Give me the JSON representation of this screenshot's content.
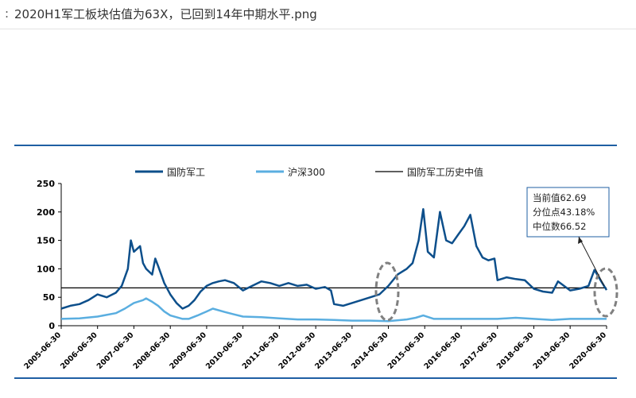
{
  "window": {
    "title_prefix": ":",
    "file_name": "2020H1军工板块估值为63X，已回到14年中期水平.png"
  },
  "annotation": {
    "lines": [
      "当前值62.69",
      "分位点43.18%",
      "中位数66.52"
    ]
  },
  "colors": {
    "defense": "#0d4f8b",
    "csi300": "#5aaee0",
    "median": "#000000",
    "rule": "#1f5fa3",
    "ellipse": "#808080"
  },
  "chart_data": {
    "type": "line",
    "title": "",
    "xlabel": "",
    "ylabel": "",
    "ylim": [
      0,
      250
    ],
    "yticks": [
      0,
      50,
      100,
      150,
      200,
      250
    ],
    "xlim": [
      "2005-06-30",
      "2020-06-30"
    ],
    "xticks": [
      "2005-06-30",
      "2006-06-30",
      "2007-06-30",
      "2008-06-30",
      "2009-06-30",
      "2010-06-30",
      "2011-06-30",
      "2012-06-30",
      "2013-06-30",
      "2014-06-30",
      "2015-06-30",
      "2016-06-30",
      "2017-06-30",
      "2018-06-30",
      "2019-06-30",
      "2020-06-30"
    ],
    "legend_position": "top",
    "grid": false,
    "series": [
      {
        "name": "国防军工",
        "points": [
          [
            "2005-06-30",
            30
          ],
          [
            "2005-09-30",
            35
          ],
          [
            "2005-12-31",
            38
          ],
          [
            "2006-03-31",
            45
          ],
          [
            "2006-06-30",
            55
          ],
          [
            "2006-09-30",
            50
          ],
          [
            "2006-12-31",
            58
          ],
          [
            "2007-02-28",
            70
          ],
          [
            "2007-04-30",
            100
          ],
          [
            "2007-05-31",
            150
          ],
          [
            "2007-06-30",
            130
          ],
          [
            "2007-08-31",
            140
          ],
          [
            "2007-09-30",
            110
          ],
          [
            "2007-10-31",
            100
          ],
          [
            "2007-12-31",
            90
          ],
          [
            "2008-01-31",
            118
          ],
          [
            "2008-02-29",
            105
          ],
          [
            "2008-04-30",
            75
          ],
          [
            "2008-06-30",
            55
          ],
          [
            "2008-08-31",
            40
          ],
          [
            "2008-10-31",
            30
          ],
          [
            "2008-12-31",
            35
          ],
          [
            "2009-02-28",
            45
          ],
          [
            "2009-04-30",
            60
          ],
          [
            "2009-06-30",
            70
          ],
          [
            "2009-08-31",
            75
          ],
          [
            "2009-10-31",
            78
          ],
          [
            "2009-12-31",
            80
          ],
          [
            "2010-03-31",
            75
          ],
          [
            "2010-06-30",
            62
          ],
          [
            "2010-09-30",
            70
          ],
          [
            "2010-12-31",
            78
          ],
          [
            "2011-03-31",
            75
          ],
          [
            "2011-06-30",
            70
          ],
          [
            "2011-09-30",
            75
          ],
          [
            "2011-12-31",
            70
          ],
          [
            "2012-03-31",
            72
          ],
          [
            "2012-06-30",
            65
          ],
          [
            "2012-09-30",
            68
          ],
          [
            "2012-11-30",
            62
          ],
          [
            "2012-12-31",
            38
          ],
          [
            "2013-03-31",
            35
          ],
          [
            "2013-06-30",
            40
          ],
          [
            "2013-09-30",
            45
          ],
          [
            "2013-12-31",
            50
          ],
          [
            "2014-03-31",
            55
          ],
          [
            "2014-06-30",
            70
          ],
          [
            "2014-09-30",
            90
          ],
          [
            "2014-12-31",
            100
          ],
          [
            "2015-02-28",
            110
          ],
          [
            "2015-04-30",
            150
          ],
          [
            "2015-06-15",
            205
          ],
          [
            "2015-07-31",
            130
          ],
          [
            "2015-09-30",
            120
          ],
          [
            "2015-11-30",
            200
          ],
          [
            "2016-01-31",
            150
          ],
          [
            "2016-03-31",
            145
          ],
          [
            "2016-05-31",
            160
          ],
          [
            "2016-07-31",
            175
          ],
          [
            "2016-09-30",
            195
          ],
          [
            "2016-11-30",
            140
          ],
          [
            "2017-01-31",
            120
          ],
          [
            "2017-03-31",
            115
          ],
          [
            "2017-05-31",
            118
          ],
          [
            "2017-06-30",
            80
          ],
          [
            "2017-09-30",
            85
          ],
          [
            "2017-12-31",
            82
          ],
          [
            "2018-03-31",
            80
          ],
          [
            "2018-06-30",
            65
          ],
          [
            "2018-09-30",
            60
          ],
          [
            "2018-12-31",
            58
          ],
          [
            "2019-02-28",
            78
          ],
          [
            "2019-04-30",
            70
          ],
          [
            "2019-06-30",
            62
          ],
          [
            "2019-09-30",
            65
          ],
          [
            "2019-12-31",
            70
          ],
          [
            "2020-02-29",
            98
          ],
          [
            "2020-04-30",
            80
          ],
          [
            "2020-06-30",
            62.69
          ]
        ]
      },
      {
        "name": "沪深300",
        "points": [
          [
            "2005-06-30",
            12
          ],
          [
            "2005-12-31",
            13
          ],
          [
            "2006-06-30",
            16
          ],
          [
            "2006-12-31",
            22
          ],
          [
            "2007-03-31",
            30
          ],
          [
            "2007-06-30",
            40
          ],
          [
            "2007-09-30",
            45
          ],
          [
            "2007-10-31",
            48
          ],
          [
            "2007-12-31",
            42
          ],
          [
            "2008-02-29",
            35
          ],
          [
            "2008-04-30",
            25
          ],
          [
            "2008-06-30",
            18
          ],
          [
            "2008-10-31",
            12
          ],
          [
            "2008-12-31",
            12
          ],
          [
            "2009-03-31",
            18
          ],
          [
            "2009-06-30",
            25
          ],
          [
            "2009-08-31",
            30
          ],
          [
            "2009-12-31",
            24
          ],
          [
            "2010-03-31",
            20
          ],
          [
            "2010-06-30",
            16
          ],
          [
            "2010-12-31",
            15
          ],
          [
            "2011-06-30",
            13
          ],
          [
            "2011-12-31",
            11
          ],
          [
            "2012-06-30",
            11
          ],
          [
            "2012-12-31",
            10
          ],
          [
            "2013-06-30",
            9
          ],
          [
            "2013-12-31",
            9
          ],
          [
            "2014-06-30",
            8
          ],
          [
            "2014-12-31",
            11
          ],
          [
            "2015-03-31",
            14
          ],
          [
            "2015-06-15",
            18
          ],
          [
            "2015-09-30",
            12
          ],
          [
            "2016-06-30",
            12
          ],
          [
            "2016-12-31",
            12
          ],
          [
            "2017-06-30",
            12
          ],
          [
            "2017-12-31",
            14
          ],
          [
            "2018-06-30",
            12
          ],
          [
            "2018-12-31",
            10
          ],
          [
            "2019-06-30",
            12
          ],
          [
            "2019-12-31",
            12
          ],
          [
            "2020-06-30",
            12
          ]
        ]
      },
      {
        "name": "国防军工历史中值",
        "constant": 66.52
      }
    ]
  }
}
